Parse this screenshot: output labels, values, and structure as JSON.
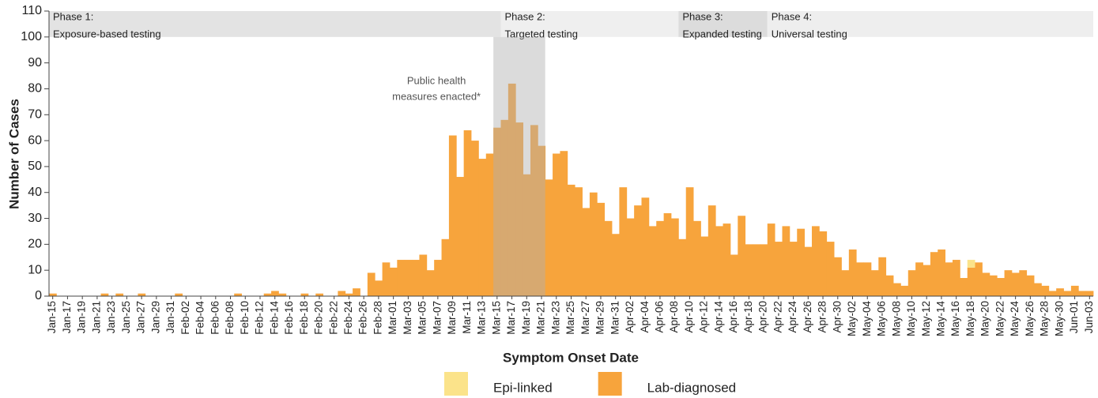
{
  "chart_data": {
    "type": "bar",
    "stacked": true,
    "y_label": "Number of Cases",
    "x_label": "Symptom Onset Date",
    "ylim": [
      0,
      110
    ],
    "yticks": [
      0,
      10,
      20,
      30,
      40,
      50,
      60,
      70,
      80,
      90,
      100,
      110
    ],
    "legend": "bottom",
    "categories": [
      "Jan-15",
      null,
      "Jan-17",
      null,
      "Jan-19",
      null,
      "Jan-21",
      null,
      "Jan-23",
      null,
      "Jan-25",
      null,
      "Jan-27",
      null,
      "Jan-29",
      null,
      "Jan-31",
      null,
      "Feb-02",
      null,
      "Feb-04",
      null,
      "Feb-06",
      null,
      "Feb-08",
      null,
      "Feb-10",
      null,
      "Feb-12",
      null,
      "Feb-14",
      null,
      "Feb-16",
      null,
      "Feb-18",
      null,
      "Feb-20",
      null,
      "Feb-22",
      null,
      "Feb-24",
      null,
      "Feb-26",
      null,
      "Feb-28",
      null,
      "Mar-01",
      null,
      "Mar-03",
      null,
      "Mar-05",
      null,
      "Mar-07",
      null,
      "Mar-09",
      null,
      "Mar-11",
      null,
      "Mar-13",
      null,
      "Mar-15",
      null,
      "Mar-17",
      null,
      "Mar-19",
      null,
      "Mar-21",
      null,
      "Mar-23",
      null,
      "Mar-25",
      null,
      "Mar-27",
      null,
      "Mar-29",
      null,
      "Mar-31",
      null,
      "Apr-02",
      null,
      "Apr-04",
      null,
      "Apr-06",
      null,
      "Apr-08",
      null,
      "Apr-10",
      null,
      "Apr-12",
      null,
      "Apr-14",
      null,
      "Apr-16",
      null,
      "Apr-18",
      null,
      "Apr-20",
      null,
      "Apr-22",
      null,
      "Apr-24",
      null,
      "Apr-26",
      null,
      "Apr-28",
      null,
      "Apr-30",
      null,
      "May-02",
      null,
      "May-04",
      null,
      "May-06",
      null,
      "May-08",
      null,
      "May-10",
      null,
      "May-12",
      null,
      "May-14",
      null,
      "May-16",
      null,
      "May-18",
      null,
      "May-20",
      null,
      "May-22",
      null,
      "May-24",
      null,
      "May-26",
      null,
      "May-28",
      null,
      "May-30",
      null,
      "Jun-01",
      null,
      "Jun-03"
    ],
    "series": [
      {
        "name": "Lab-diagnosed",
        "color": "#f7a43c",
        "values": [
          1,
          0,
          0,
          0,
          0,
          0,
          0,
          1,
          0,
          1,
          0,
          0,
          1,
          0,
          0,
          0,
          0,
          1,
          0,
          0,
          0,
          0,
          0,
          0,
          0,
          1,
          0,
          0,
          0,
          1,
          2,
          1,
          0,
          0,
          1,
          0,
          1,
          0,
          0,
          2,
          1,
          3,
          0,
          9,
          6,
          13,
          11,
          14,
          14,
          14,
          16,
          10,
          14,
          22,
          62,
          46,
          64,
          60,
          53,
          55,
          65,
          68,
          82,
          67,
          47,
          66,
          58,
          45,
          55,
          56,
          43,
          42,
          34,
          40,
          36,
          29,
          24,
          42,
          30,
          35,
          38,
          27,
          29,
          32,
          30,
          22,
          42,
          29,
          23,
          35,
          27,
          28,
          16,
          31,
          20,
          20,
          20,
          28,
          21,
          27,
          21,
          26,
          19,
          27,
          25,
          21,
          15,
          10,
          18,
          13,
          13,
          10,
          15,
          8,
          5,
          4,
          10,
          13,
          12,
          17,
          18,
          13,
          14,
          7,
          11,
          13,
          9,
          8,
          7,
          10,
          9,
          10,
          8,
          5,
          4,
          2,
          3,
          2,
          4,
          2,
          2
        ]
      },
      {
        "name": "Epi-linked",
        "color": "#fbe38a",
        "values": [
          0,
          0,
          0,
          0,
          0,
          0,
          0,
          0,
          0,
          0,
          0,
          0,
          0,
          0,
          0,
          0,
          0,
          0,
          0,
          0,
          0,
          0,
          0,
          0,
          0,
          0,
          0,
          0,
          0,
          0,
          0,
          0,
          0,
          0,
          0,
          0,
          0,
          0,
          0,
          0,
          0,
          0,
          0,
          0,
          0,
          0,
          0,
          0,
          0,
          0,
          0,
          0,
          0,
          0,
          0,
          0,
          0,
          0,
          0,
          0,
          0,
          0,
          0,
          0,
          0,
          0,
          0,
          0,
          0,
          0,
          0,
          0,
          0,
          0,
          0,
          0,
          0,
          0,
          0,
          0,
          0,
          0,
          0,
          0,
          0,
          0,
          0,
          0,
          0,
          0,
          0,
          0,
          0,
          0,
          0,
          0,
          0,
          0,
          0,
          0,
          0,
          0,
          0,
          0,
          0,
          0,
          0,
          0,
          0,
          0,
          0,
          0,
          0,
          0,
          0,
          0,
          0,
          0,
          0,
          0,
          0,
          0,
          0,
          0,
          3,
          0,
          0,
          0,
          0,
          0,
          0,
          0,
          0,
          0,
          0,
          0,
          0,
          0,
          0,
          0,
          0
        ]
      }
    ],
    "legend_order": [
      1,
      0
    ],
    "phase_yrange": [
      100,
      110
    ],
    "phases": [
      {
        "label": "Phase 1:",
        "description": "Exposure-based testing",
        "start": 0,
        "end": 61,
        "color": "#e3e3e3"
      },
      {
        "label": "Phase 2:",
        "description": "Targeted testing",
        "start": 61,
        "end": 85,
        "color": "#efefef"
      },
      {
        "label": "Phase 3:",
        "description": "Expanded testing",
        "start": 85,
        "end": 97,
        "color": "#dcdcdc"
      },
      {
        "label": "Phase 4:",
        "description": "Universal testing",
        "start": 97,
        "end": 141,
        "color": "#eeeeee"
      }
    ],
    "highlight": {
      "lines": [
        "Public health",
        "measures enacted*"
      ],
      "start": 60,
      "end": 67,
      "color": "#b0b0b0"
    }
  }
}
